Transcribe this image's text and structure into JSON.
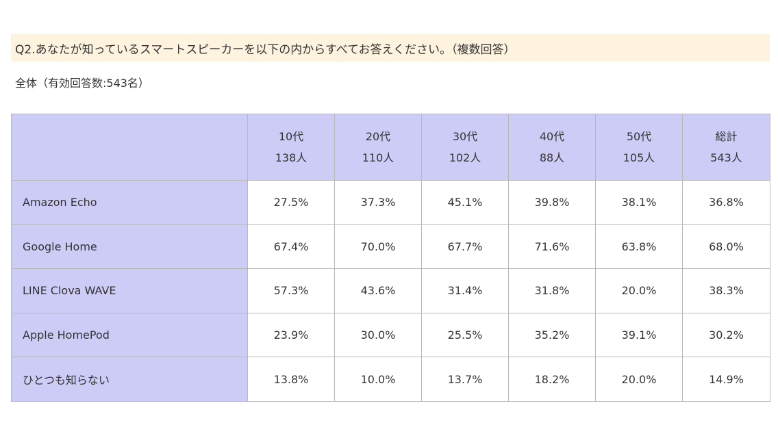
{
  "question": "Q2.あなたが知っているスマートスピーカーを以下の内からすべてお答えください。（複数回答）",
  "subtitle": "全体（有効回答数:543名）",
  "chart_data": {
    "type": "table",
    "title": "Q2.あなたが知っているスマートスピーカーを以下の内からすべてお答えください。（複数回答）",
    "subtitle": "全体（有効回答数:543名）",
    "columns": [
      {
        "label": "10代",
        "count": "138人"
      },
      {
        "label": "20代",
        "count": "110人"
      },
      {
        "label": "30代",
        "count": "102人"
      },
      {
        "label": "40代",
        "count": "88人"
      },
      {
        "label": "50代",
        "count": "105人"
      },
      {
        "label": "総計",
        "count": "543人"
      }
    ],
    "rows": [
      {
        "label": "Amazon Echo",
        "values": [
          "27.5%",
          "37.3%",
          "45.1%",
          "39.8%",
          "38.1%",
          "36.8%"
        ]
      },
      {
        "label": "Google Home",
        "values": [
          "67.4%",
          "70.0%",
          "67.7%",
          "71.6%",
          "63.8%",
          "68.0%"
        ]
      },
      {
        "label": "LINE Clova WAVE",
        "values": [
          "57.3%",
          "43.6%",
          "31.4%",
          "31.8%",
          "20.0%",
          "38.3%"
        ]
      },
      {
        "label": "Apple HomePod",
        "values": [
          "23.9%",
          "30.0%",
          "25.5%",
          "35.2%",
          "39.1%",
          "30.2%"
        ]
      },
      {
        "label": "ひとつも知らない",
        "values": [
          "13.8%",
          "10.0%",
          "13.7%",
          "18.2%",
          "20.0%",
          "14.9%"
        ]
      }
    ]
  },
  "colors": {
    "header_bg": "#ccccf6",
    "question_bg": "#fdf3de",
    "border": "#b8b8b8",
    "text": "#333333"
  }
}
